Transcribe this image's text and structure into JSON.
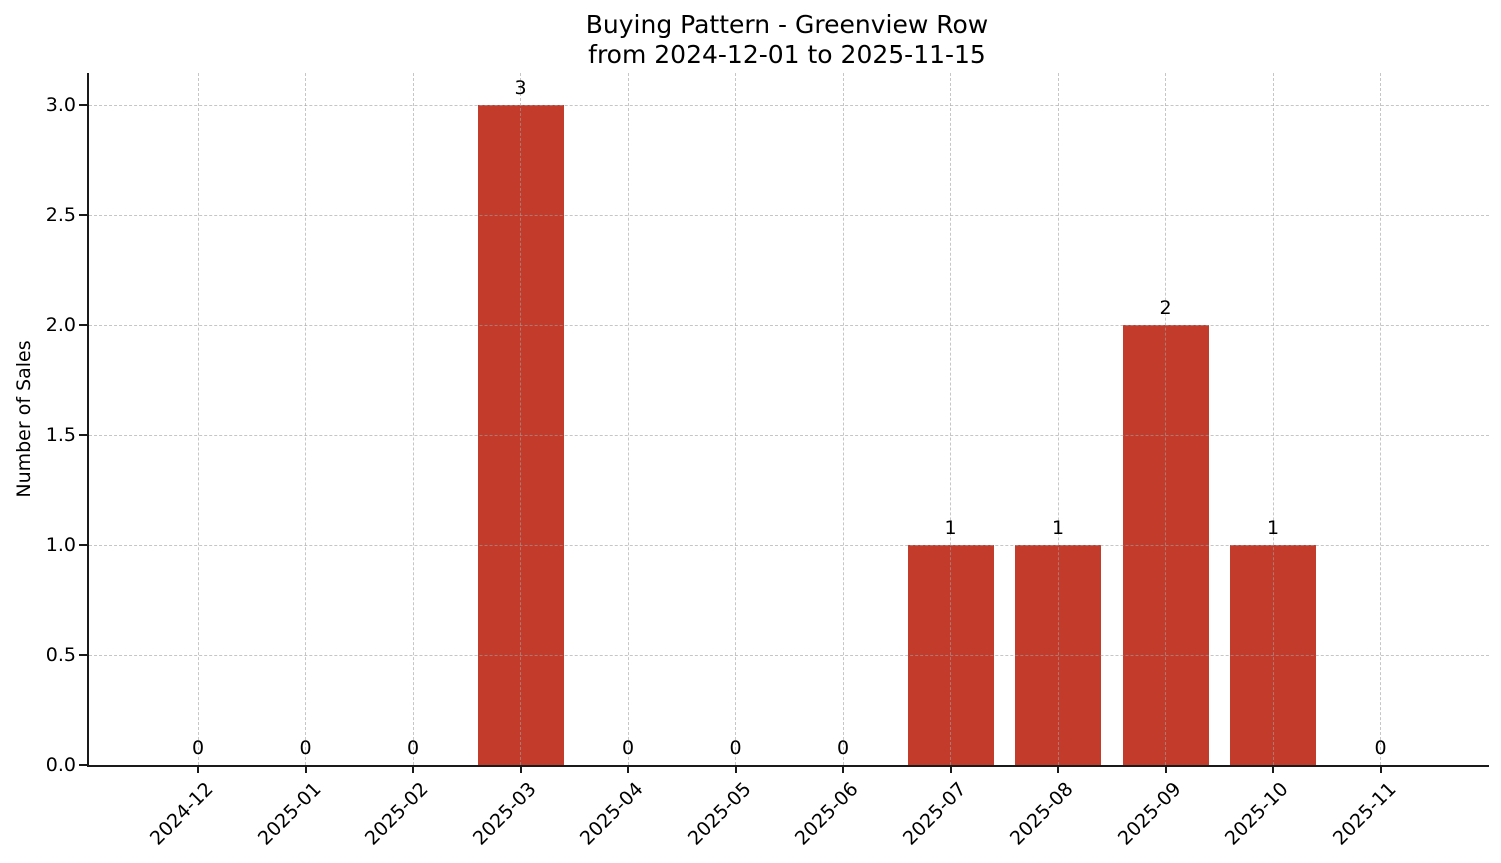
{
  "chart_data": {
    "type": "bar",
    "title": "Buying Pattern - Greenview Row",
    "subtitle": "from 2024-12-01 to 2025-11-15",
    "categories": [
      "2024-12",
      "2025-01",
      "2025-02",
      "2025-03",
      "2025-04",
      "2025-05",
      "2025-06",
      "2025-07",
      "2025-08",
      "2025-09",
      "2025-10",
      "2025-11"
    ],
    "values": [
      0,
      0,
      0,
      3,
      0,
      0,
      0,
      1,
      1,
      2,
      1,
      0
    ],
    "bar_labels": [
      "0",
      "0",
      "0",
      "3",
      "0",
      "0",
      "0",
      "1",
      "1",
      "2",
      "1",
      "0"
    ],
    "xlabel": "",
    "ylabel": "Number of Sales",
    "ylim": [
      0,
      3.15
    ],
    "ytick_labels": [
      "0.0",
      "0.5",
      "1.0",
      "1.5",
      "2.0",
      "2.5",
      "3.0"
    ],
    "grid": true,
    "grid_style": "dashed",
    "legend": "none",
    "bar_color": "#c33b2b",
    "axis_color": "#1a1a1a",
    "text_color": "#000000",
    "background_color": "#ffffff"
  }
}
